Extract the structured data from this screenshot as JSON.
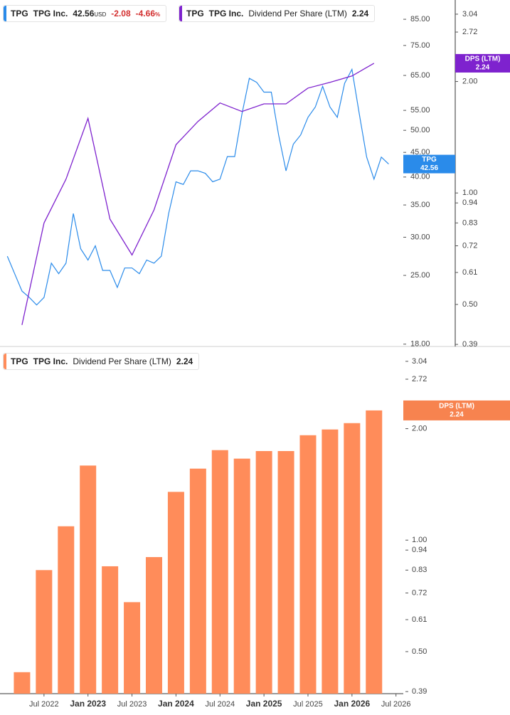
{
  "chart_data": [
    {
      "type": "line",
      "log_scale": true,
      "x": [
        "2022-02",
        "2022-03",
        "2022-04",
        "2022-05",
        "2022-06",
        "2022-07",
        "2022-08",
        "2022-09",
        "2022-10",
        "2022-11",
        "2022-12",
        "2023-01",
        "2023-02",
        "2023-03",
        "2023-04",
        "2023-05",
        "2023-06",
        "2023-07",
        "2023-08",
        "2023-09",
        "2023-10",
        "2023-11",
        "2023-12",
        "2024-01",
        "2024-02",
        "2024-03",
        "2024-04",
        "2024-05",
        "2024-06",
        "2024-07",
        "2024-08",
        "2024-09",
        "2024-10",
        "2024-11",
        "2024-12",
        "2025-01",
        "2025-02",
        "2025-03",
        "2025-04",
        "2025-05",
        "2025-06",
        "2025-07",
        "2025-08",
        "2025-09",
        "2025-10",
        "2025-11",
        "2025-12",
        "2026-01",
        "2026-02",
        "2026-03",
        "2026-04",
        "2026-05",
        "2026-06"
      ],
      "xlim": [
        "2022-01",
        "2026-08"
      ],
      "series": [
        {
          "name": "TPG",
          "company": "TPG Inc.",
          "color": "#2a8bea",
          "currency": "USD",
          "change": -2.08,
          "change_pct": -4.66,
          "change_pct_unit": "%",
          "values": [
            27.4,
            25.2,
            23.2,
            22.5,
            21.7,
            22.5,
            26.5,
            25.2,
            26.5,
            33.6,
            28.4,
            26.9,
            28.8,
            25.6,
            25.6,
            23.6,
            25.9,
            25.9,
            25.2,
            26.9,
            26.5,
            27.4,
            33.6,
            39.1,
            38.6,
            41.2,
            41.2,
            40.7,
            39.1,
            39.6,
            44.1,
            44.1,
            54.1,
            64.1,
            62.9,
            60.0,
            60.0,
            48.9,
            41.2,
            46.8,
            48.9,
            53.2,
            55.9,
            61.7,
            55.9,
            53.2,
            62.6,
            66.9,
            54.1,
            44.0,
            39.6,
            44.0,
            42.56
          ]
        },
        {
          "name": "Dividend Per Share (LTM)",
          "ticker": "TPG",
          "company": "TPG Inc.",
          "flag_label": "DPS (LTM)",
          "axis": "y2",
          "color": "#7e22ce",
          "x": [
            "2022-04",
            "2022-07",
            "2022-10",
            "2023-01",
            "2023-04",
            "2023-07",
            "2023-10",
            "2024-01",
            "2024-04",
            "2024-07",
            "2024-10",
            "2025-01",
            "2025-04",
            "2025-07",
            "2025-10",
            "2026-01",
            "2026-04"
          ],
          "values": [
            0.44,
            0.83,
            1.09,
            1.59,
            0.85,
            0.68,
            0.9,
            1.35,
            1.56,
            1.75,
            1.66,
            1.74,
            1.74,
            1.92,
            1.99,
            2.07,
            2.24
          ]
        }
      ],
      "ylim": [
        17.8,
        93.2
      ],
      "yticks": [
        {
          "value": 85,
          "label": "85.00"
        },
        {
          "value": 75,
          "label": "75.00"
        },
        {
          "value": 65,
          "label": "65.00"
        },
        {
          "value": 55,
          "label": "55.00"
        },
        {
          "value": 50,
          "label": "50.00"
        },
        {
          "value": 45,
          "label": "45.00"
        },
        {
          "value": 40,
          "label": "40.00"
        },
        {
          "value": 35,
          "label": "35.00"
        },
        {
          "value": 30,
          "label": "30.00"
        },
        {
          "value": 25,
          "label": "25.00"
        },
        {
          "value": 18,
          "label": "18.00"
        }
      ],
      "y2lim": [
        0.385,
        3.32
      ],
      "y2ticks": [
        3.04,
        2.72,
        {
          "value": 2,
          "label": "2.00"
        },
        {
          "value": 1,
          "label": "1.00"
        },
        0.94,
        0.83,
        0.72,
        0.61,
        {
          "value": 0.5,
          "label": "0.50"
        },
        0.39
      ]
    },
    {
      "type": "bar",
      "log_scale": true,
      "ticker": "TPG",
      "company": "TPG Inc.",
      "name": "Dividend Per Share (LTM)",
      "flag_label": "DPS (LTM)",
      "color": "#ff8c5a",
      "x": [
        "2022-04",
        "2022-07",
        "2022-10",
        "2023-01",
        "2023-04",
        "2023-07",
        "2023-10",
        "2024-01",
        "2024-04",
        "2024-07",
        "2024-10",
        "2025-01",
        "2025-04",
        "2025-07",
        "2025-10",
        "2026-01",
        "2026-04"
      ],
      "values": [
        0.44,
        0.83,
        1.09,
        1.59,
        0.85,
        0.68,
        0.9,
        1.35,
        1.56,
        1.75,
        1.66,
        1.74,
        1.74,
        1.92,
        1.99,
        2.07,
        2.24
      ],
      "xlim": [
        "2022-01",
        "2026-08"
      ],
      "xticks": [
        {
          "value": "2022-07",
          "label": "Jul 2022"
        },
        {
          "value": "2023-01",
          "label": "Jan 2023"
        },
        {
          "value": "2023-07",
          "label": "Jul 2023"
        },
        {
          "value": "2024-01",
          "label": "Jan 2024"
        },
        {
          "value": "2024-07",
          "label": "Jul 2024"
        },
        {
          "value": "2025-01",
          "label": "Jan 2025"
        },
        {
          "value": "2025-07",
          "label": "Jul 2025"
        },
        {
          "value": "2026-01",
          "label": "Jan 2026"
        },
        {
          "value": "2026-07",
          "label": "Jul 2026"
        }
      ],
      "ylim": [
        0.385,
        3.29
      ],
      "yticks": [
        3.04,
        2.72,
        {
          "value": 2,
          "label": "2.00"
        },
        {
          "value": 1,
          "label": "1.00"
        },
        0.94,
        0.83,
        0.72,
        0.61,
        {
          "value": 0.5,
          "label": "0.50"
        },
        0.39
      ]
    }
  ]
}
